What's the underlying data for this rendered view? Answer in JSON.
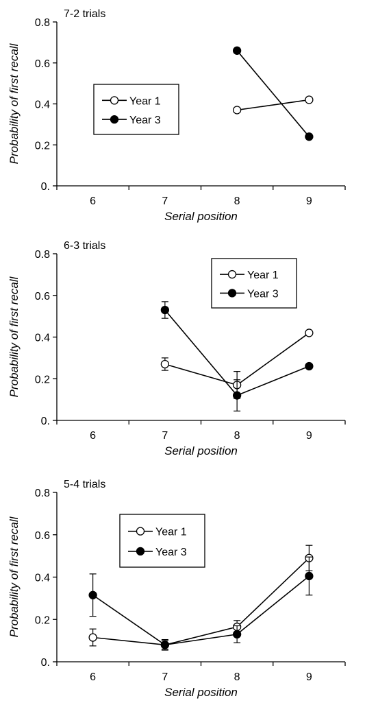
{
  "chart_data": [
    {
      "type": "line",
      "title": "7-2 trials",
      "xlabel": "Serial position",
      "ylabel": "Probability of first recall",
      "x_ticks": [
        "6",
        "7",
        "8",
        "9"
      ],
      "y_ticks": [
        "0.",
        "0.2",
        "0.4",
        "0.6",
        "0.8"
      ],
      "xlim": [
        5.5,
        9.5
      ],
      "ylim": [
        0,
        0.8
      ],
      "grid": false,
      "legend_position": "center-left",
      "series": [
        {
          "name": "Year 1",
          "marker": "open-circle",
          "color": "#000000",
          "points": [
            {
              "x": 8,
              "y": 0.37
            },
            {
              "x": 9,
              "y": 0.42
            }
          ]
        },
        {
          "name": "Year 3",
          "marker": "filled-circle",
          "color": "#000000",
          "points": [
            {
              "x": 8,
              "y": 0.66
            },
            {
              "x": 9,
              "y": 0.24
            }
          ]
        }
      ]
    },
    {
      "type": "line",
      "title": "6-3 trials",
      "xlabel": "Serial position",
      "ylabel": "Probability of first recall",
      "x_ticks": [
        "6",
        "7",
        "8",
        "9"
      ],
      "y_ticks": [
        "0.",
        "0.2",
        "0.4",
        "0.6",
        "0.8"
      ],
      "xlim": [
        5.5,
        9.5
      ],
      "ylim": [
        0,
        0.8
      ],
      "grid": false,
      "legend_position": "top-right",
      "series": [
        {
          "name": "Year 1",
          "marker": "open-circle",
          "color": "#000000",
          "points": [
            {
              "x": 7,
              "y": 0.27,
              "err": 0.03
            },
            {
              "x": 8,
              "y": 0.17,
              "err": 0.065
            },
            {
              "x": 9,
              "y": 0.42
            }
          ]
        },
        {
          "name": "Year 3",
          "marker": "filled-circle",
          "color": "#000000",
          "points": [
            {
              "x": 7,
              "y": 0.53,
              "err": 0.04
            },
            {
              "x": 8,
              "y": 0.12,
              "err": 0.075
            },
            {
              "x": 9,
              "y": 0.26
            }
          ]
        }
      ]
    },
    {
      "type": "line",
      "title": "5-4 trials",
      "xlabel": "Serial position",
      "ylabel": "Probability of first recall",
      "x_ticks": [
        "6",
        "7",
        "8",
        "9"
      ],
      "y_ticks": [
        "0.",
        "0.2",
        "0.4",
        "0.6",
        "0.8"
      ],
      "xlim": [
        5.5,
        9.5
      ],
      "ylim": [
        0,
        0.8
      ],
      "grid": false,
      "legend_position": "top-left",
      "series": [
        {
          "name": "Year 1",
          "marker": "open-circle",
          "color": "#000000",
          "points": [
            {
              "x": 6,
              "y": 0.115,
              "err": 0.04
            },
            {
              "x": 7,
              "y": 0.08,
              "err": 0.02
            },
            {
              "x": 8,
              "y": 0.165,
              "err": 0.03
            },
            {
              "x": 9,
              "y": 0.49,
              "err": 0.06
            }
          ]
        },
        {
          "name": "Year 3",
          "marker": "filled-circle",
          "color": "#000000",
          "points": [
            {
              "x": 6,
              "y": 0.315,
              "err": 0.1
            },
            {
              "x": 7,
              "y": 0.08,
              "err": 0.025
            },
            {
              "x": 8,
              "y": 0.13,
              "err": 0.04
            },
            {
              "x": 9,
              "y": 0.405,
              "err": 0.09
            }
          ]
        }
      ]
    }
  ]
}
